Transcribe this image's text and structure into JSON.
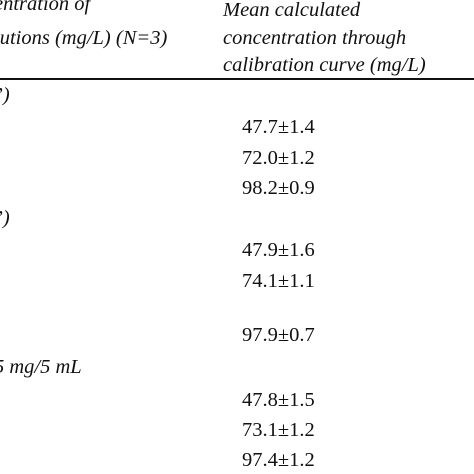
{
  "header": {
    "col1_line1": "entration of",
    "col1_line2": "lutions (mg/L) (N=3)",
    "col2_line1": "Mean calculated",
    "col2_line2": "concentration through",
    "col2_line3": "calibration curve (mg/L)"
  },
  "sections": [
    {
      "label": "’)",
      "values": [
        "47.7±1.4",
        "72.0±1.2",
        "98.2±0.9"
      ]
    },
    {
      "label": "’)",
      "values": [
        "47.9±1.6",
        "74.1±1.1",
        "97.9±0.7"
      ]
    },
    {
      "label": "5 mg/5 mL",
      "values": [
        "47.8±1.5",
        "73.1±1.2",
        "97.4±1.2"
      ]
    }
  ]
}
